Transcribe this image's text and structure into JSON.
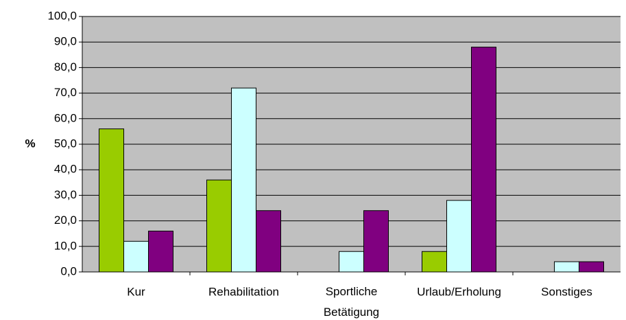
{
  "chart_data": {
    "type": "bar",
    "y_label": "%",
    "categories": [
      "Kur",
      "Rehabilitation",
      "Sportliche Betätigung",
      "Urlaub/Erholung",
      "Sonstiges"
    ],
    "series": [
      {
        "color": "#99cc00",
        "values": [
          56,
          36,
          0,
          8,
          0
        ]
      },
      {
        "color": "#ccffff",
        "values": [
          12,
          72,
          8,
          28,
          4
        ]
      },
      {
        "color": "#800080",
        "values": [
          16,
          24,
          24,
          88,
          4
        ]
      }
    ],
    "ylim": [
      0,
      100
    ],
    "yticks": [
      {
        "value": 0,
        "label": "0,0"
      },
      {
        "value": 10,
        "label": "10,0"
      },
      {
        "value": 20,
        "label": "20,0"
      },
      {
        "value": 30,
        "label": "30,0"
      },
      {
        "value": 40,
        "label": "40,0"
      },
      {
        "value": 50,
        "label": "50,0"
      },
      {
        "value": 60,
        "label": "60,0"
      },
      {
        "value": 70,
        "label": "70,0"
      },
      {
        "value": 80,
        "label": "80,0"
      },
      {
        "value": 90,
        "label": "90,0"
      },
      {
        "value": 100,
        "label": "100,0"
      }
    ],
    "grid": true,
    "plot_background": "#c0c0c0"
  }
}
